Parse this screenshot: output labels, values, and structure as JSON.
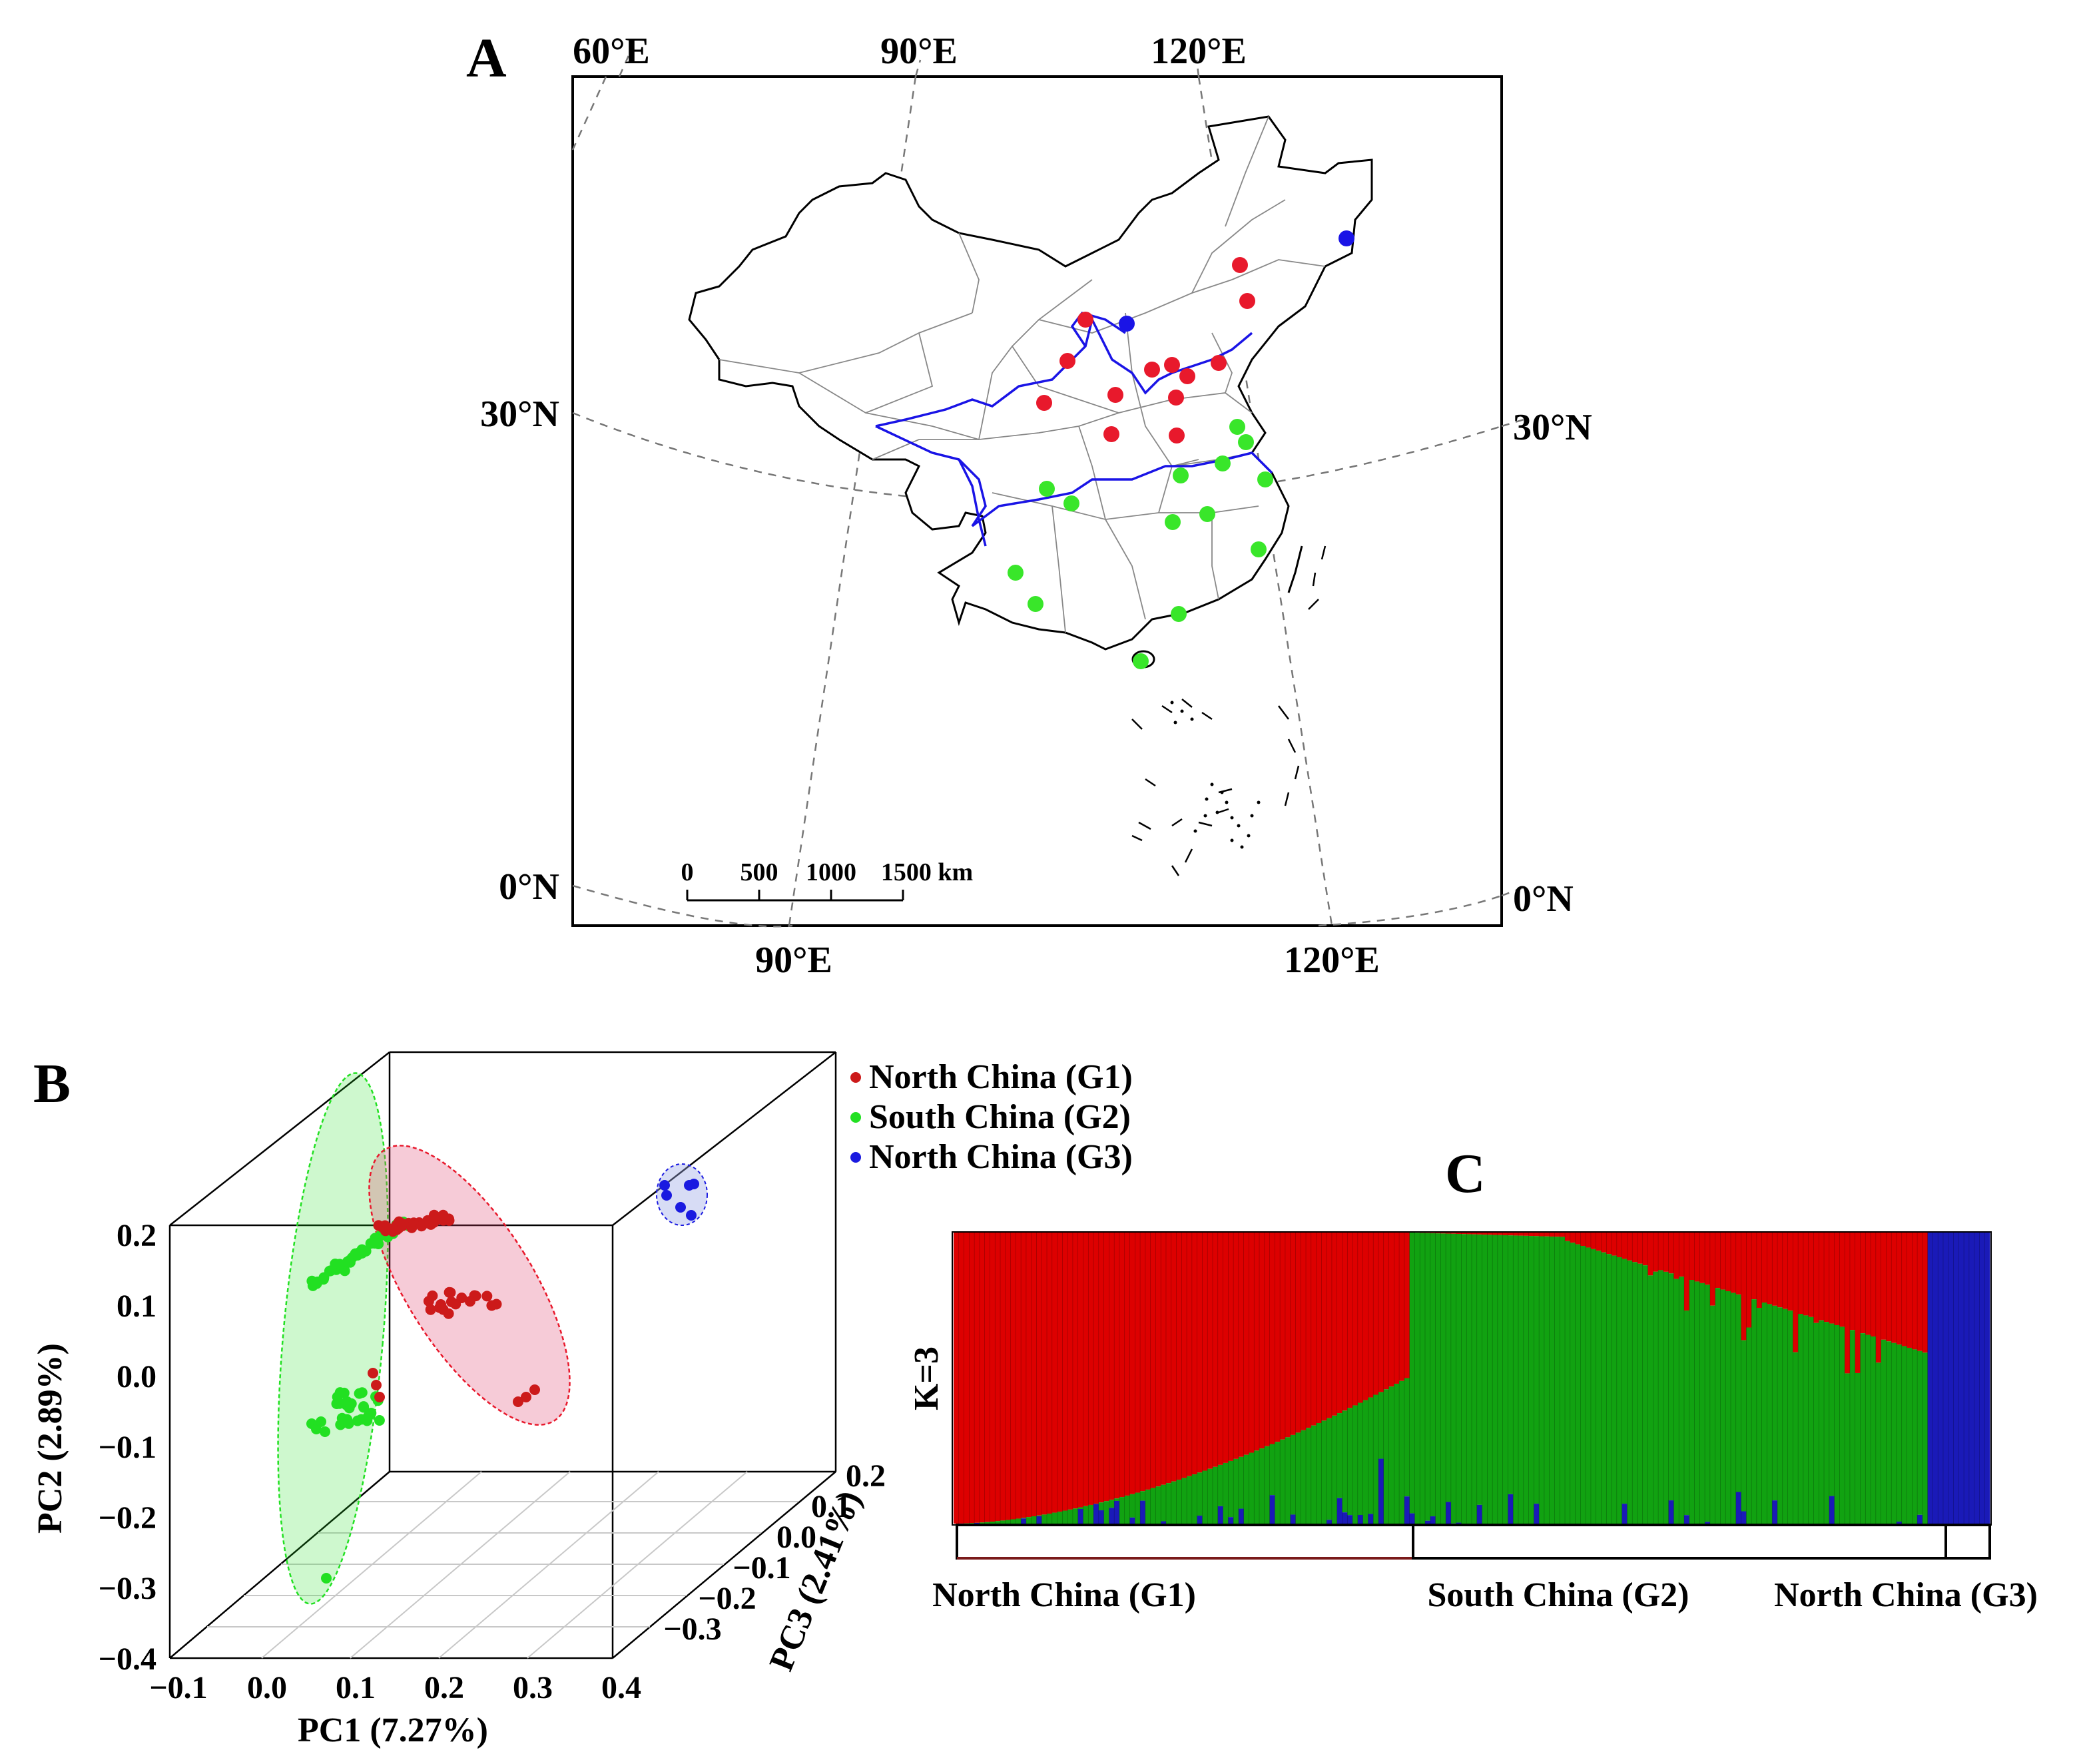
{
  "panel_a": {
    "letter": "A",
    "lon_labels_top": [
      "60°E",
      "90°E",
      "120°E"
    ],
    "lon_labels_bottom": [
      "90°E",
      "120°E"
    ],
    "lat_labels_left": [
      "30°N",
      "0°N"
    ],
    "lat_labels_right": [
      "30°N",
      "0°N"
    ],
    "scale_ticks": [
      "0",
      "500",
      "1000",
      "1500 km"
    ],
    "site_colors": {
      "g1": "#e8192c",
      "g2": "#39e62a",
      "g3": "#1a14e6"
    }
  },
  "panel_b": {
    "letter": "B",
    "legend": [
      "North China (G1)",
      "South China (G2)",
      "North China (G3)"
    ],
    "colors": {
      "g1": "#cc1a1a",
      "g2": "#22e022",
      "g3": "#1a1ae0"
    },
    "xlabel": "PC1 (7.27%)",
    "ylabel": "PC2 (2.89%)",
    "zlabel": "PC3 (2.41%)",
    "x_ticks": [
      "−0.1",
      "0.0",
      "0.1",
      "0.2",
      "0.3",
      "0.4"
    ],
    "y_ticks": [
      "0.2",
      "0.1",
      "0.0",
      "−0.1",
      "−0.2",
      "−0.3",
      "−0.4"
    ],
    "z_ticks": [
      "0.2",
      "0.1",
      "0.0",
      "−0.1",
      "−0.2",
      "−0.3"
    ]
  },
  "panel_c": {
    "letter": "C",
    "k_label": "K=3",
    "group_labels": [
      "North China (G1)",
      "South China (G2)",
      "North China (G3)"
    ],
    "colors": {
      "red": "#dd0000",
      "green": "#11a211",
      "blue": "#1a1ab8"
    }
  }
}
